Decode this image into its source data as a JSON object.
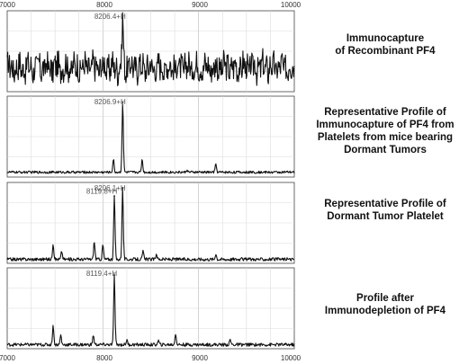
{
  "axis": {
    "x_ticks": [
      "7000",
      "8000",
      "9000",
      "10000"
    ]
  },
  "chart_data": {
    "type": "line",
    "x_range": [
      7000,
      10000
    ],
    "grid": true,
    "panels": [
      {
        "caption": "Immunocapture\nof Recombinant PF4",
        "baseline": 0.3,
        "noise": 0.16,
        "peaks": [
          {
            "x": 8206.4,
            "height": 0.6,
            "label": "8206.4+H"
          }
        ]
      },
      {
        "caption": "Representative Profile of\nImmunocapture of PF4 from\nPlatelets from mice bearing\nDormant Tumors",
        "baseline": 0.06,
        "noise": 0.015,
        "peaks": [
          {
            "x": 8206.9,
            "height": 0.86,
            "label": "8206.9+H"
          },
          {
            "x": 8110,
            "height": 0.16,
            "label": ""
          },
          {
            "x": 8410,
            "height": 0.16,
            "label": ""
          },
          {
            "x": 9180,
            "height": 0.1,
            "label": ""
          },
          {
            "x": 8880,
            "height": 0.03,
            "label": ""
          }
        ]
      },
      {
        "caption": "Representative Profile of\nDormant Tumor Platelet",
        "baseline": 0.05,
        "noise": 0.02,
        "peaks": [
          {
            "x": 8119.8,
            "height": 0.78,
            "label": "8119.8+H"
          },
          {
            "x": 8206.1,
            "height": 0.88,
            "label": "8206.1+H"
          },
          {
            "x": 7480,
            "height": 0.2,
            "label": ""
          },
          {
            "x": 7570,
            "height": 0.1,
            "label": ""
          },
          {
            "x": 7910,
            "height": 0.22,
            "label": ""
          },
          {
            "x": 8000,
            "height": 0.18,
            "label": ""
          },
          {
            "x": 8420,
            "height": 0.1,
            "label": ""
          },
          {
            "x": 8560,
            "height": 0.07,
            "label": ""
          },
          {
            "x": 9180,
            "height": 0.07,
            "label": ""
          },
          {
            "x": 9450,
            "height": 0.04,
            "label": ""
          }
        ]
      },
      {
        "caption": "Profile after\nImmunodepletion of PF4",
        "baseline": 0.05,
        "noise": 0.02,
        "peaks": [
          {
            "x": 8119.4,
            "height": 0.86,
            "label": "8119.4+H"
          },
          {
            "x": 7480,
            "height": 0.24,
            "label": ""
          },
          {
            "x": 7560,
            "height": 0.12,
            "label": ""
          },
          {
            "x": 7900,
            "height": 0.12,
            "label": ""
          },
          {
            "x": 8250,
            "height": 0.06,
            "label": ""
          },
          {
            "x": 8760,
            "height": 0.14,
            "label": ""
          },
          {
            "x": 8580,
            "height": 0.05,
            "label": ""
          },
          {
            "x": 9330,
            "height": 0.06,
            "label": ""
          }
        ]
      }
    ]
  }
}
